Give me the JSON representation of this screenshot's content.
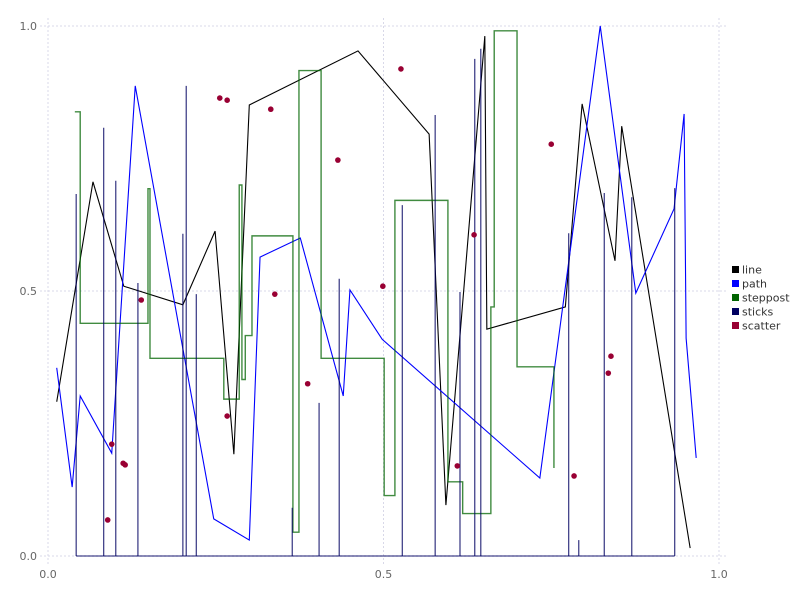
{
  "chart_data": {
    "type": "line",
    "title": "",
    "xlabel": "",
    "ylabel": "",
    "xlim": [
      0,
      1
    ],
    "ylim": [
      0,
      1
    ],
    "grid": true,
    "legend_placement": "right",
    "x_ticks": [
      "0.0",
      "0.5",
      "1.0"
    ],
    "y_ticks": [
      "0.0",
      "0.5",
      "1.0"
    ],
    "series": [
      {
        "name": "line",
        "kind": "line",
        "color": "#000000",
        "points": [
          [
            0.013,
            0.291
          ],
          [
            0.067,
            0.706
          ],
          [
            0.113,
            0.509
          ],
          [
            0.201,
            0.474
          ],
          [
            0.249,
            0.613
          ],
          [
            0.277,
            0.192
          ],
          [
            0.3,
            0.851
          ],
          [
            0.462,
            0.953
          ],
          [
            0.568,
            0.796
          ],
          [
            0.593,
            0.096
          ],
          [
            0.651,
            0.981
          ],
          [
            0.654,
            0.428
          ],
          [
            0.771,
            0.47
          ],
          [
            0.796,
            0.853
          ],
          [
            0.845,
            0.557
          ],
          [
            0.855,
            0.811
          ],
          [
            0.957,
            0.015
          ]
        ]
      },
      {
        "name": "path",
        "kind": "path",
        "color": "#0000ff",
        "points": [
          [
            0.013,
            0.355
          ],
          [
            0.036,
            0.13
          ],
          [
            0.048,
            0.302
          ],
          [
            0.095,
            0.194
          ],
          [
            0.13,
            0.887
          ],
          [
            0.247,
            0.07
          ],
          [
            0.3,
            0.03
          ],
          [
            0.316,
            0.564
          ],
          [
            0.376,
            0.6
          ],
          [
            0.44,
            0.302
          ],
          [
            0.45,
            0.502
          ],
          [
            0.498,
            0.409
          ],
          [
            0.733,
            0.147
          ],
          [
            0.823,
            1.0
          ],
          [
            0.876,
            0.496
          ],
          [
            0.933,
            0.655
          ],
          [
            0.948,
            0.834
          ],
          [
            0.951,
            0.411
          ],
          [
            0.966,
            0.185
          ]
        ]
      },
      {
        "name": "steppost",
        "kind": "steppost",
        "color": "#006400",
        "points": [
          [
            0.04,
            0.838
          ],
          [
            0.048,
            0.439
          ],
          [
            0.149,
            0.693
          ],
          [
            0.152,
            0.373
          ],
          [
            0.262,
            0.296
          ],
          [
            0.285,
            0.7
          ],
          [
            0.289,
            0.333
          ],
          [
            0.294,
            0.416
          ],
          [
            0.304,
            0.604
          ],
          [
            0.365,
            0.045
          ],
          [
            0.374,
            0.916
          ],
          [
            0.407,
            0.373
          ],
          [
            0.501,
            0.114
          ],
          [
            0.517,
            0.671
          ],
          [
            0.596,
            0.14
          ],
          [
            0.618,
            0.08
          ],
          [
            0.66,
            0.47
          ],
          [
            0.665,
            0.991
          ],
          [
            0.699,
            0.357
          ],
          [
            0.754,
            0.166
          ]
        ]
      },
      {
        "name": "sticks",
        "kind": "sticks",
        "color": "#000060",
        "points": [
          [
            0.042,
            0.683
          ],
          [
            0.083,
            0.808
          ],
          [
            0.101,
            0.708
          ],
          [
            0.134,
            0.515
          ],
          [
            0.201,
            0.608
          ],
          [
            0.206,
            0.887
          ],
          [
            0.221,
            0.494
          ],
          [
            0.364,
            0.091
          ],
          [
            0.404,
            0.289
          ],
          [
            0.434,
            0.523
          ],
          [
            0.528,
            0.662
          ],
          [
            0.577,
            0.832
          ],
          [
            0.614,
            0.498
          ],
          [
            0.636,
            0.938
          ],
          [
            0.645,
            0.957
          ],
          [
            0.776,
            0.609
          ],
          [
            0.791,
            0.03
          ],
          [
            0.829,
            0.685
          ],
          [
            0.87,
            0.677
          ],
          [
            0.934,
            0.694
          ]
        ]
      },
      {
        "name": "scatter",
        "kind": "scatter",
        "color": "#990033",
        "points": [
          [
            0.089,
            0.068
          ],
          [
            0.095,
            0.211
          ],
          [
            0.112,
            0.175
          ],
          [
            0.115,
            0.172
          ],
          [
            0.139,
            0.483
          ],
          [
            0.256,
            0.864
          ],
          [
            0.267,
            0.86
          ],
          [
            0.267,
            0.264
          ],
          [
            0.332,
            0.843
          ],
          [
            0.338,
            0.494
          ],
          [
            0.387,
            0.325
          ],
          [
            0.432,
            0.747
          ],
          [
            0.499,
            0.509
          ],
          [
            0.526,
            0.919
          ],
          [
            0.61,
            0.17
          ],
          [
            0.635,
            0.606
          ],
          [
            0.75,
            0.777
          ],
          [
            0.784,
            0.151
          ],
          [
            0.835,
            0.345
          ],
          [
            0.839,
            0.377
          ]
        ]
      }
    ]
  }
}
